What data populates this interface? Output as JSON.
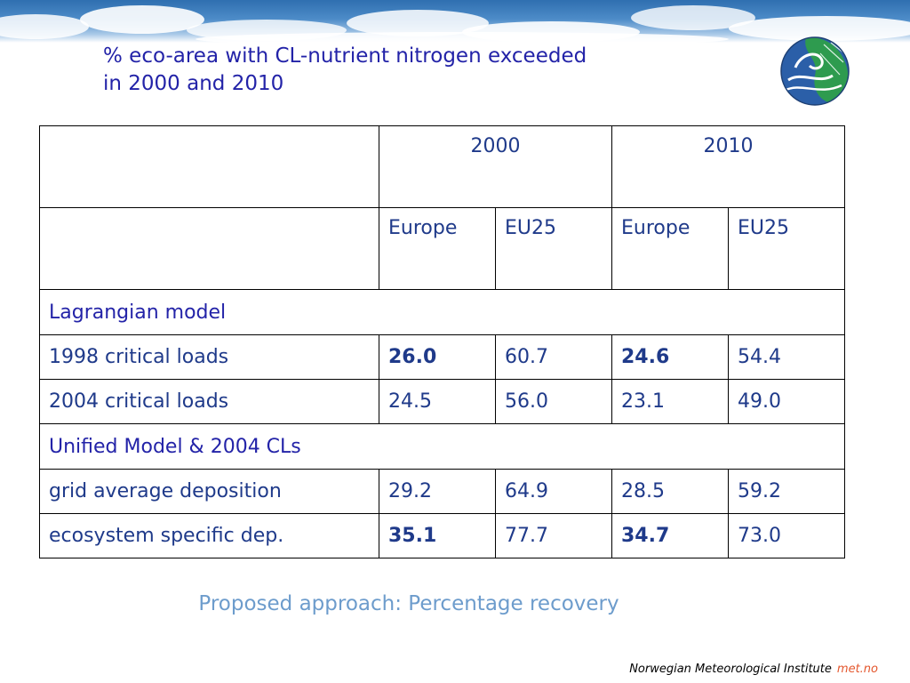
{
  "title": {
    "line1": "% eco-area with CL-nutrient nitrogen exceeded",
    "line2": "in 2000 and 2010"
  },
  "table": {
    "years": [
      "2000",
      "2010"
    ],
    "regions": [
      "Europe",
      "EU25",
      "Europe",
      "EU25"
    ],
    "sections": [
      {
        "label": "Lagrangian model",
        "rows": [
          {
            "label": "1998 critical loads",
            "values": [
              "26.0",
              "60.7",
              "24.6",
              "54.4"
            ],
            "bold": [
              true,
              false,
              true,
              false
            ]
          },
          {
            "label": "2004 critical loads",
            "values": [
              "24.5",
              "56.0",
              "23.1",
              "49.0"
            ],
            "bold": [
              false,
              false,
              false,
              false
            ]
          }
        ]
      },
      {
        "label": "Unified Model & 2004 CLs",
        "rows": [
          {
            "label": "grid average deposition",
            "values": [
              "29.2",
              "64.9",
              "28.5",
              "59.2"
            ],
            "bold": [
              false,
              false,
              false,
              false
            ]
          },
          {
            "label": "ecosystem specific dep.",
            "values": [
              "35.1",
              "77.7",
              "34.7",
              "73.0"
            ],
            "bold": [
              true,
              false,
              true,
              false
            ]
          }
        ]
      }
    ]
  },
  "subtitle": "Proposed approach: Percentage recovery",
  "footer": {
    "institute": "Norwegian Meteorological Institute",
    "brand": "met.no"
  },
  "colors": {
    "title": "#2323a8",
    "table_text": "#1f3a8a",
    "subtitle": "#6d9ccc",
    "brand": "#e4572e",
    "logo_green": "#2e9b4f",
    "logo_blue": "#2b5fa8"
  },
  "icons": {
    "logo": "met-no-globe-logo"
  }
}
